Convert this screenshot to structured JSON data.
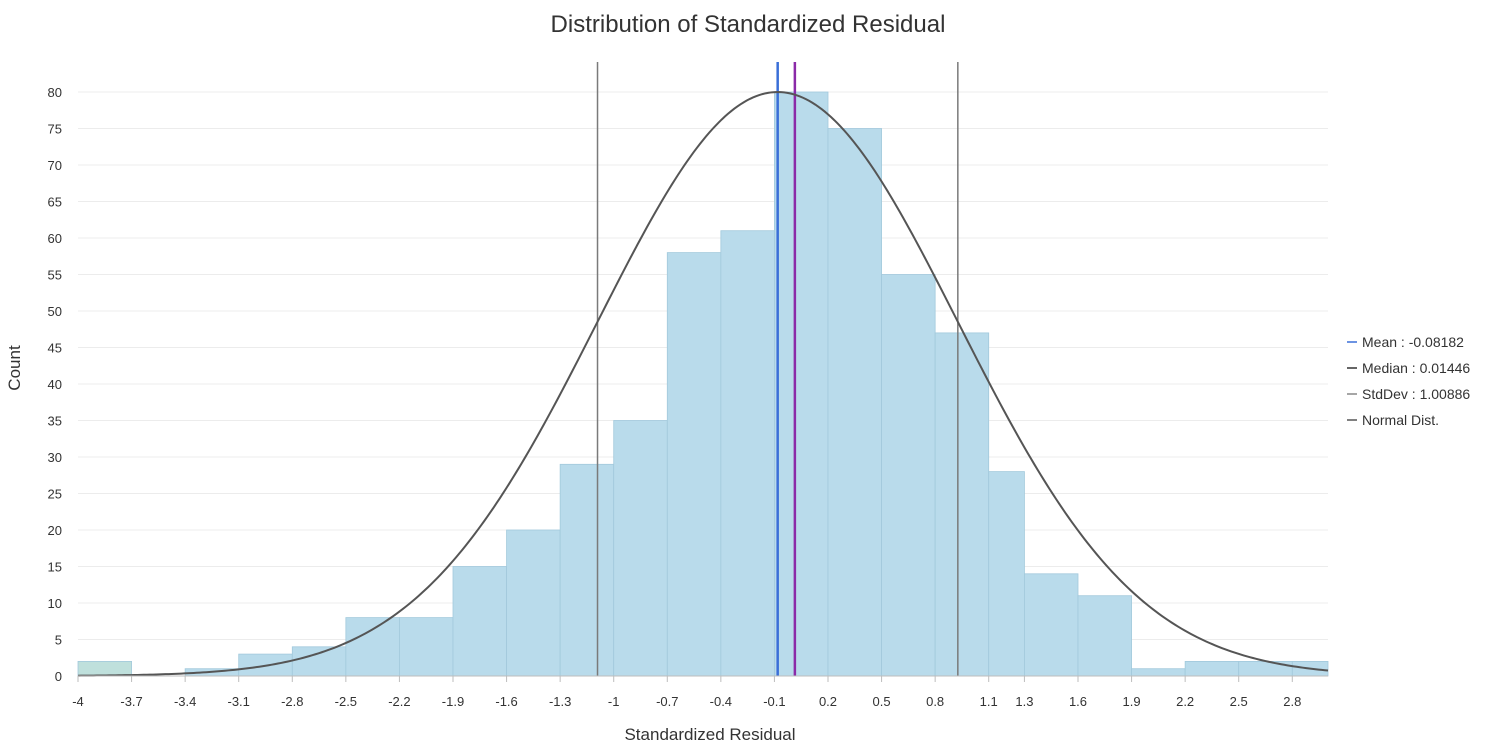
{
  "chart_data": {
    "type": "bar",
    "title": "Distribution of Standardized Residual",
    "xlabel": "Standardized Residual",
    "ylabel": "Count",
    "xlim": [
      -4,
      3.0
    ],
    "ylim": [
      0,
      80
    ],
    "y_ticks": [
      0,
      5,
      10,
      15,
      20,
      25,
      30,
      35,
      40,
      45,
      50,
      55,
      60,
      65,
      70,
      75,
      80
    ],
    "x_ticks": [
      "-4",
      "-3.7",
      "-3.4",
      "-3.1",
      "-2.8",
      "-2.5",
      "-2.2",
      "-1.9",
      "-1.6",
      "-1.3",
      "-1",
      "-0.7",
      "-0.4",
      "-0.1",
      "0.2",
      "0.5",
      "0.8",
      "1.1",
      "1.3",
      "1.6",
      "1.9",
      "2.2",
      "2.5",
      "2.8"
    ],
    "bins": [
      {
        "x0": -4.0,
        "x1": -3.7,
        "count": 2
      },
      {
        "x0": -3.7,
        "x1": -3.4,
        "count": 0
      },
      {
        "x0": -3.4,
        "x1": -3.1,
        "count": 1
      },
      {
        "x0": -3.1,
        "x1": -2.8,
        "count": 3
      },
      {
        "x0": -2.8,
        "x1": -2.5,
        "count": 4
      },
      {
        "x0": -2.5,
        "x1": -2.2,
        "count": 8
      },
      {
        "x0": -2.2,
        "x1": -1.9,
        "count": 8
      },
      {
        "x0": -1.9,
        "x1": -1.6,
        "count": 15
      },
      {
        "x0": -1.6,
        "x1": -1.3,
        "count": 20
      },
      {
        "x0": -1.3,
        "x1": -1.0,
        "count": 29
      },
      {
        "x0": -1.0,
        "x1": -0.7,
        "count": 35
      },
      {
        "x0": -0.7,
        "x1": -0.4,
        "count": 58
      },
      {
        "x0": -0.4,
        "x1": -0.1,
        "count": 61
      },
      {
        "x0": -0.1,
        "x1": 0.2,
        "count": 80
      },
      {
        "x0": 0.2,
        "x1": 0.5,
        "count": 75
      },
      {
        "x0": 0.5,
        "x1": 0.8,
        "count": 55
      },
      {
        "x0": 0.8,
        "x1": 1.1,
        "count": 47
      },
      {
        "x0": 1.1,
        "x1": 1.3,
        "count": 28
      },
      {
        "x0": 1.3,
        "x1": 1.6,
        "count": 14
      },
      {
        "x0": 1.6,
        "x1": 1.9,
        "count": 11
      },
      {
        "x0": 1.9,
        "x1": 2.2,
        "count": 1
      },
      {
        "x0": 2.2,
        "x1": 2.5,
        "count": 2
      },
      {
        "x0": 2.5,
        "x1": 2.8,
        "count": 2
      },
      {
        "x0": 2.8,
        "x1": 3.0,
        "count": 2
      }
    ],
    "mean": -0.08182,
    "median": 0.01446,
    "stddev": 1.00886,
    "normal_curve_peak": 80,
    "grid": true,
    "legend_position": "right",
    "legend": [
      {
        "key": "mean",
        "label": "Mean : -0.08182",
        "color": "#3a6fd8"
      },
      {
        "key": "median",
        "label": "Median : 0.01446",
        "color": "#333333"
      },
      {
        "key": "stddev",
        "label": "StdDev : 1.00886",
        "color": "#888888"
      },
      {
        "key": "normal",
        "label": "Normal Dist.",
        "color": "#555555"
      }
    ],
    "colors": {
      "bar_fill": "#b9dbeb",
      "bar_stroke": "#a2c9dc",
      "outlier_bar_fill": "#bfe0dc",
      "mean_line": "#3a6fd8",
      "median_line": "#8b2aa8",
      "stddev_line": "#7a7a7a",
      "normal_curve": "#555555",
      "grid": "#ececec"
    }
  }
}
